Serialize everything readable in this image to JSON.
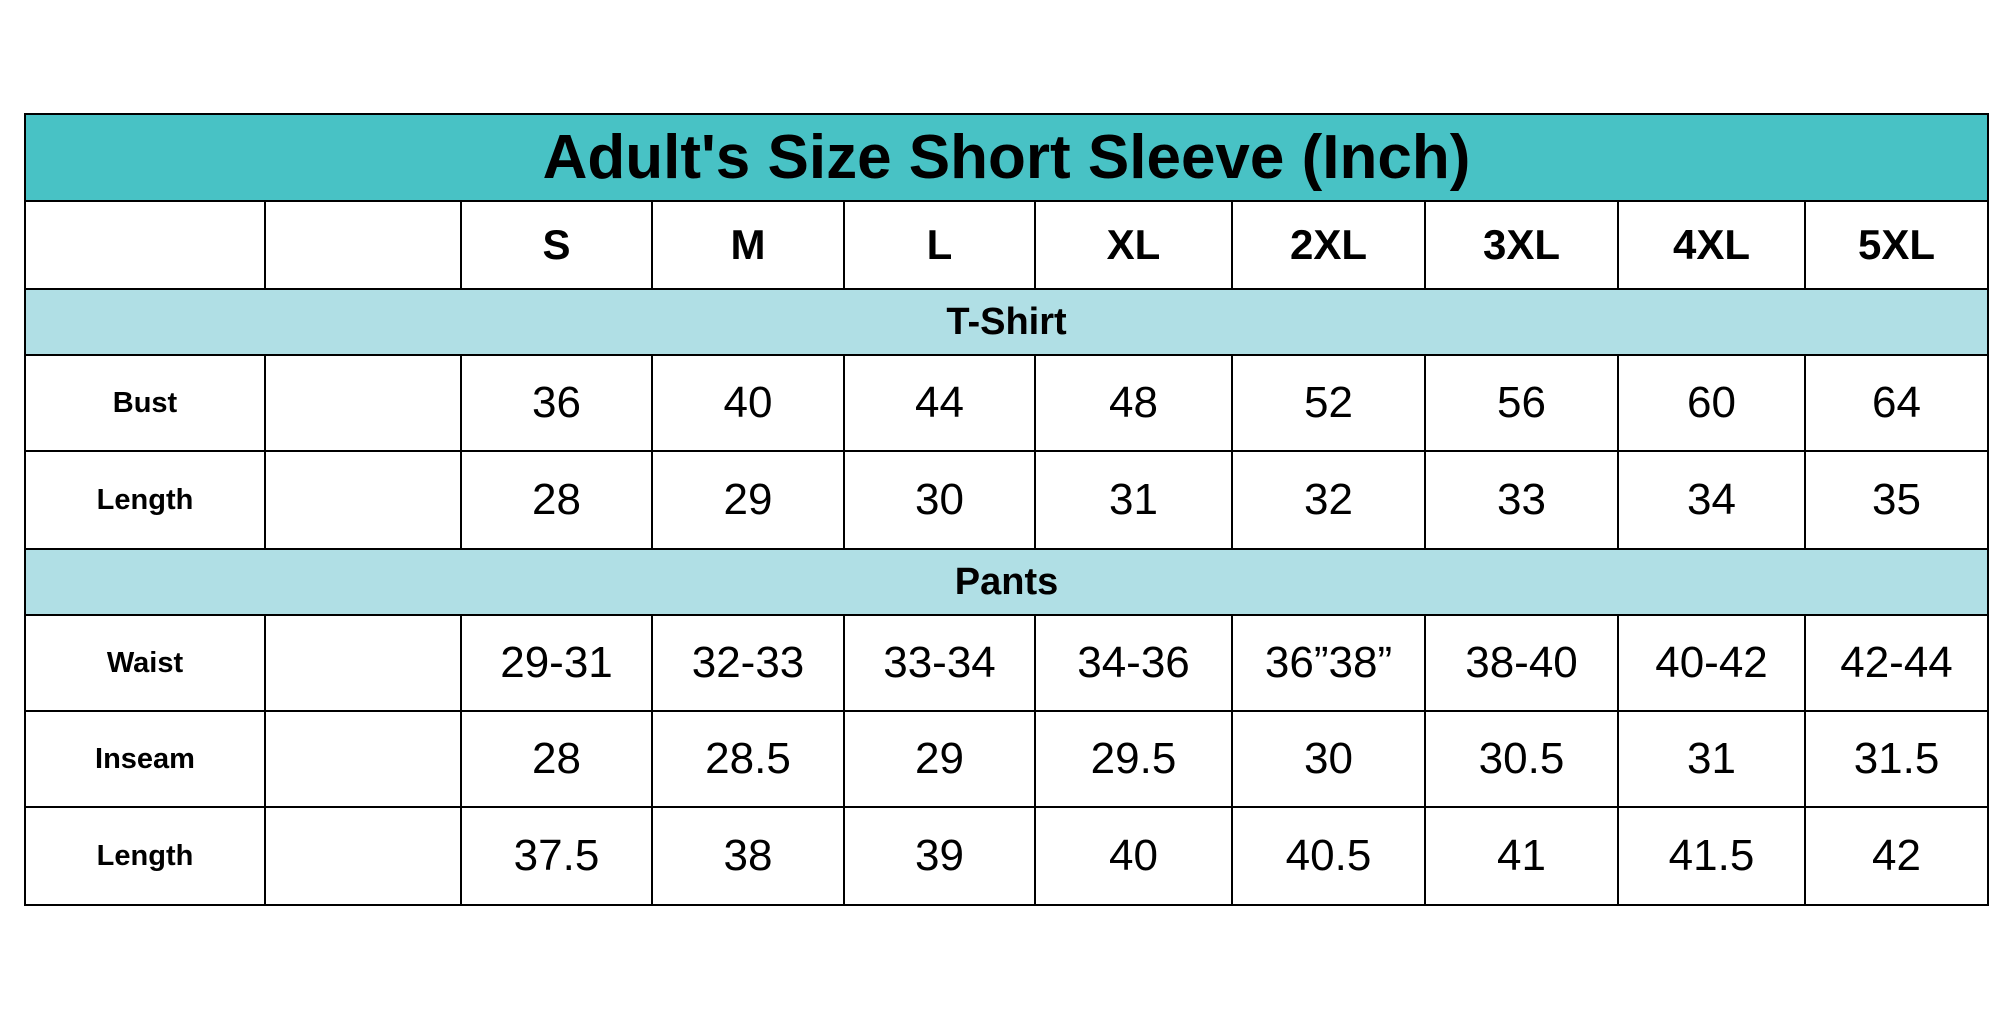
{
  "title": "Adult's Size Short Sleeve (Inch)",
  "sizes": [
    "S",
    "M",
    "L",
    "XL",
    "2XL",
    "3XL",
    "4XL",
    "5XL"
  ],
  "sections": [
    {
      "name": "T-Shirt",
      "rows": [
        {
          "label": "Bust",
          "values": [
            "36",
            "40",
            "44",
            "48",
            "52",
            "56",
            "60",
            "64"
          ]
        },
        {
          "label": "Length",
          "values": [
            "28",
            "29",
            "30",
            "31",
            "32",
            "33",
            "34",
            "35"
          ]
        }
      ]
    },
    {
      "name": "Pants",
      "rows": [
        {
          "label": "Waist",
          "values": [
            "29-31",
            "32-33",
            "33-34",
            "34-36",
            "36”38”",
            "38-40",
            "40-42",
            "42-44"
          ]
        },
        {
          "label": "Inseam",
          "values": [
            "28",
            "28.5",
            "29",
            "29.5",
            "30",
            "30.5",
            "31",
            "31.5"
          ]
        },
        {
          "label": "Length",
          "values": [
            "37.5",
            "38",
            "39",
            "40",
            "40.5",
            "41",
            "41.5",
            "42"
          ]
        }
      ]
    }
  ],
  "colors": {
    "title_bg": "#48c2c5",
    "section_bg": "#b0dfe5",
    "border": "#000000"
  }
}
